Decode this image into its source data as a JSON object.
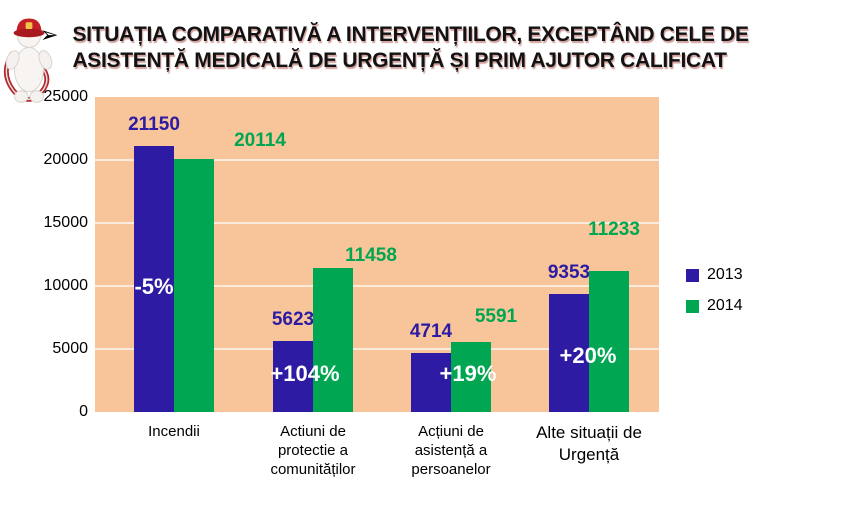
{
  "page": {
    "bullet": "➢",
    "title_line1": "SITUAȚIA COMPARATIVĂ A INTERVENȚIILOR, EXCEPTÂND CELE DE",
    "title_line2": "ASISTENȚĂ MEDICALĂ DE URGENȚĂ ȘI PRIM AJUTOR CALIFICAT"
  },
  "icons": {
    "mascot": "firefighter-mascot"
  },
  "chart_data": {
    "type": "bar",
    "title": "",
    "xlabel": "",
    "ylabel": "",
    "categories": [
      "Incendii",
      "Actiuni de protectie a comunităților",
      "Acțiuni de asistență a persoanelor",
      "Alte situații de Urgență"
    ],
    "category_lines": [
      [
        "Incendii"
      ],
      [
        "Actiuni de",
        "protectie a",
        "comunităților"
      ],
      [
        "Acțiuni de",
        "asistență a",
        "persoanelor"
      ],
      [
        "Alte situații de",
        "Urgență"
      ]
    ],
    "series": [
      {
        "name": "2013",
        "color": "#2D1BA3",
        "values": [
          21150,
          5623,
          4714,
          9353
        ]
      },
      {
        "name": "2014",
        "color": "#00A651",
        "values": [
          20114,
          11458,
          5591,
          11233
        ]
      }
    ],
    "pct_labels": [
      "-5%",
      "+104%",
      "+19%",
      "+20%"
    ],
    "ylim": [
      0,
      25000
    ],
    "yticks": [
      0,
      5000,
      10000,
      15000,
      20000,
      25000
    ],
    "plot_bg": "#F8C59B",
    "grid": true,
    "legend_position": "right"
  }
}
